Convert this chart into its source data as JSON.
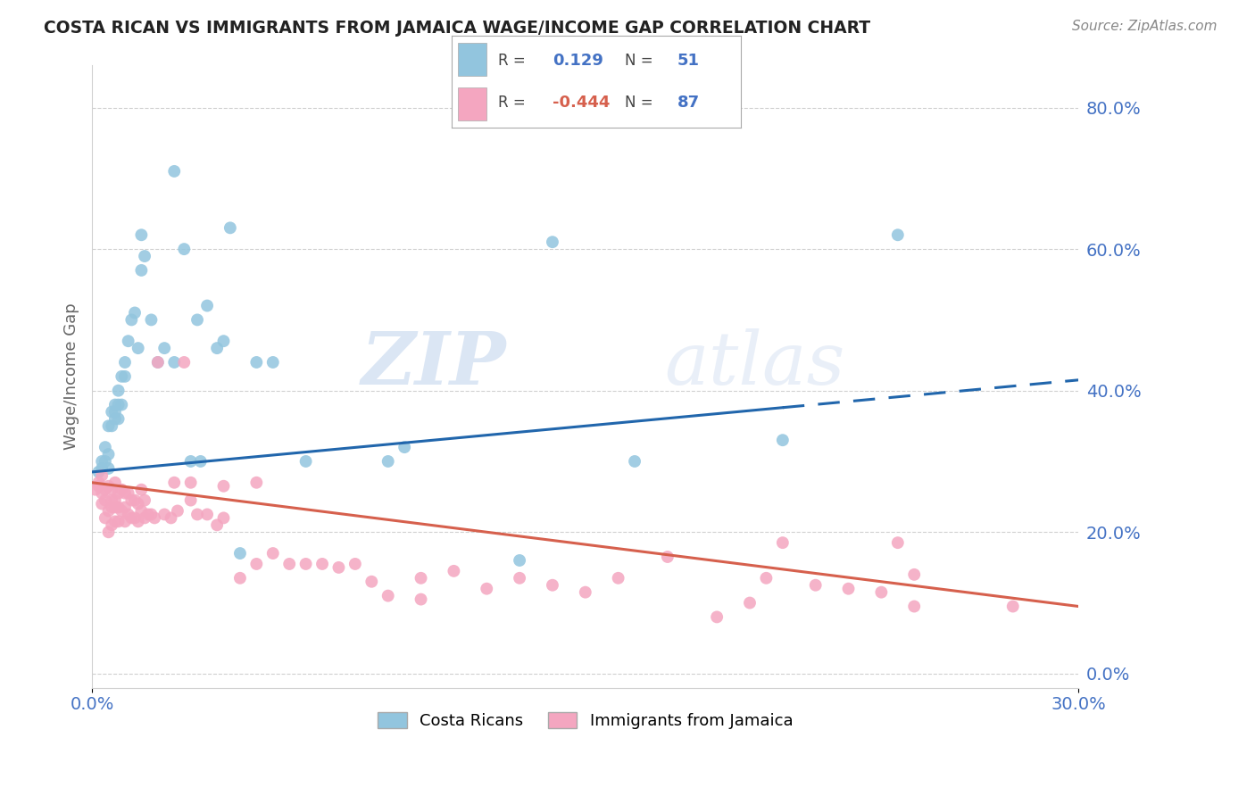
{
  "title": "COSTA RICAN VS IMMIGRANTS FROM JAMAICA WAGE/INCOME GAP CORRELATION CHART",
  "source": "Source: ZipAtlas.com",
  "ylabel": "Wage/Income Gap",
  "blue_label": "Costa Ricans",
  "pink_label": "Immigrants from Jamaica",
  "xmin": 0.0,
  "xmax": 0.3,
  "ymin": -0.02,
  "ymax": 0.86,
  "yticks": [
    0.0,
    0.2,
    0.4,
    0.6,
    0.8
  ],
  "ytick_labels": [
    "0.0%",
    "20.0%",
    "40.0%",
    "60.0%",
    "80.0%"
  ],
  "xtick_labels": [
    "0.0%",
    "30.0%"
  ],
  "blue_color": "#92c5de",
  "pink_color": "#f4a6c0",
  "blue_line_color": "#2166ac",
  "pink_line_color": "#d6604d",
  "tick_color": "#4472c4",
  "grid_color": "#d0d0d0",
  "legend_r1_val": "0.129",
  "legend_r1_n": "51",
  "legend_r2_val": "-0.444",
  "legend_r2_n": "87",
  "watermark": "ZIPatlas",
  "blue_line_x0": 0.0,
  "blue_line_y0": 0.285,
  "blue_line_x1": 0.3,
  "blue_line_y1": 0.415,
  "pink_line_x0": 0.0,
  "pink_line_y0": 0.27,
  "pink_line_x1": 0.3,
  "pink_line_y1": 0.095,
  "blue_scatter_x": [
    0.002,
    0.003,
    0.003,
    0.004,
    0.004,
    0.005,
    0.005,
    0.005,
    0.006,
    0.006,
    0.007,
    0.007,
    0.007,
    0.008,
    0.008,
    0.008,
    0.009,
    0.009,
    0.01,
    0.01,
    0.011,
    0.012,
    0.013,
    0.014,
    0.015,
    0.015,
    0.016,
    0.018,
    0.02,
    0.022,
    0.025,
    0.03,
    0.033,
    0.035,
    0.038,
    0.04,
    0.042,
    0.05,
    0.055,
    0.065,
    0.09,
    0.095,
    0.13,
    0.14,
    0.165,
    0.21,
    0.245,
    0.025,
    0.028,
    0.032,
    0.045
  ],
  "blue_scatter_y": [
    0.285,
    0.29,
    0.3,
    0.3,
    0.32,
    0.29,
    0.31,
    0.35,
    0.35,
    0.37,
    0.36,
    0.37,
    0.38,
    0.36,
    0.38,
    0.4,
    0.38,
    0.42,
    0.42,
    0.44,
    0.47,
    0.5,
    0.51,
    0.46,
    0.57,
    0.62,
    0.59,
    0.5,
    0.44,
    0.46,
    0.44,
    0.3,
    0.3,
    0.52,
    0.46,
    0.47,
    0.63,
    0.44,
    0.44,
    0.3,
    0.3,
    0.32,
    0.16,
    0.61,
    0.3,
    0.33,
    0.62,
    0.71,
    0.6,
    0.5,
    0.17
  ],
  "pink_scatter_x": [
    0.001,
    0.002,
    0.002,
    0.003,
    0.003,
    0.003,
    0.004,
    0.004,
    0.004,
    0.005,
    0.005,
    0.005,
    0.006,
    0.006,
    0.006,
    0.006,
    0.007,
    0.007,
    0.007,
    0.007,
    0.008,
    0.008,
    0.008,
    0.009,
    0.009,
    0.01,
    0.01,
    0.01,
    0.011,
    0.011,
    0.012,
    0.012,
    0.013,
    0.013,
    0.014,
    0.014,
    0.015,
    0.015,
    0.016,
    0.016,
    0.017,
    0.018,
    0.019,
    0.02,
    0.022,
    0.024,
    0.026,
    0.028,
    0.03,
    0.032,
    0.035,
    0.038,
    0.04,
    0.045,
    0.05,
    0.055,
    0.065,
    0.075,
    0.085,
    0.1,
    0.11,
    0.12,
    0.13,
    0.14,
    0.16,
    0.175,
    0.19,
    0.205,
    0.22,
    0.24,
    0.25,
    0.245,
    0.21,
    0.23,
    0.025,
    0.03,
    0.04,
    0.05,
    0.06,
    0.07,
    0.08,
    0.09,
    0.1,
    0.15,
    0.2,
    0.25,
    0.28
  ],
  "pink_scatter_y": [
    0.26,
    0.265,
    0.27,
    0.24,
    0.255,
    0.28,
    0.22,
    0.245,
    0.26,
    0.2,
    0.23,
    0.265,
    0.21,
    0.235,
    0.245,
    0.26,
    0.215,
    0.235,
    0.245,
    0.27,
    0.215,
    0.235,
    0.255,
    0.23,
    0.26,
    0.215,
    0.235,
    0.255,
    0.225,
    0.255,
    0.22,
    0.245,
    0.22,
    0.245,
    0.215,
    0.24,
    0.23,
    0.26,
    0.22,
    0.245,
    0.225,
    0.225,
    0.22,
    0.44,
    0.225,
    0.22,
    0.23,
    0.44,
    0.245,
    0.225,
    0.225,
    0.21,
    0.22,
    0.135,
    0.155,
    0.17,
    0.155,
    0.15,
    0.13,
    0.135,
    0.145,
    0.12,
    0.135,
    0.125,
    0.135,
    0.165,
    0.08,
    0.135,
    0.125,
    0.115,
    0.095,
    0.185,
    0.185,
    0.12,
    0.27,
    0.27,
    0.265,
    0.27,
    0.155,
    0.155,
    0.155,
    0.11,
    0.105,
    0.115,
    0.1,
    0.14,
    0.095
  ]
}
